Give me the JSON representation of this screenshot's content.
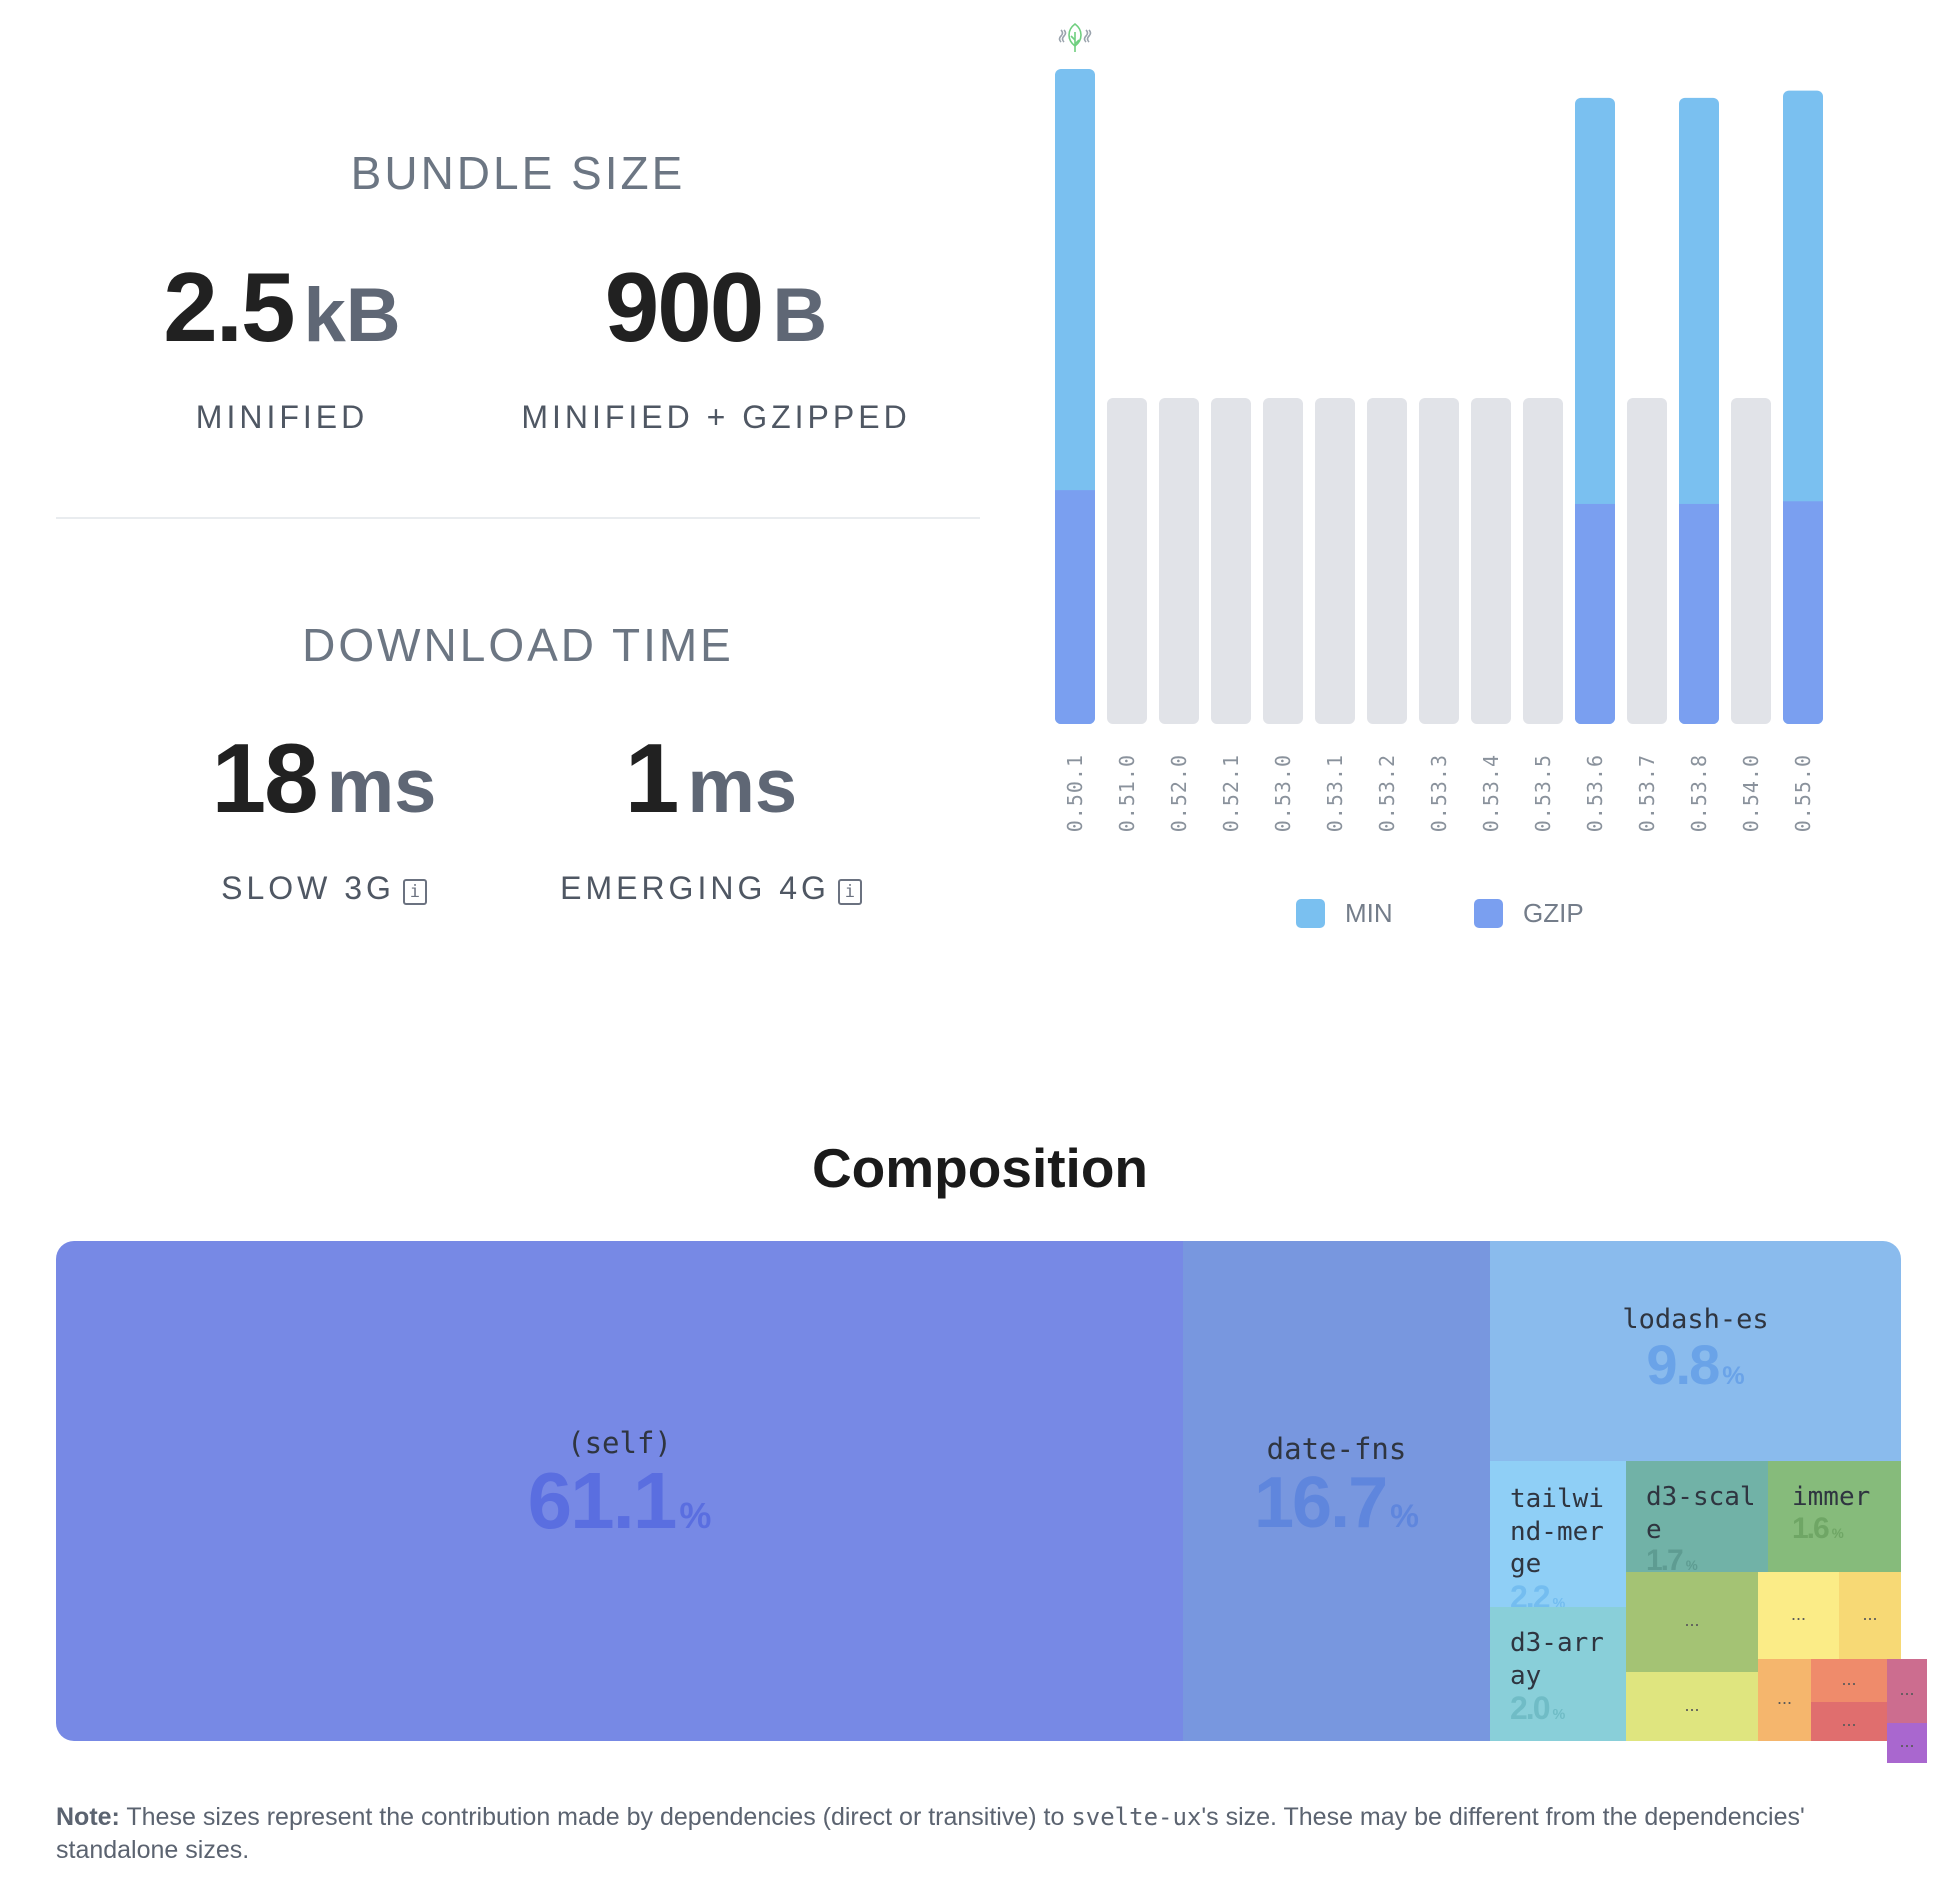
{
  "bundle_size": {
    "title": "BUNDLE SIZE",
    "minified": {
      "value": "2.5",
      "unit": "kB",
      "label": "MINIFIED"
    },
    "gzipped": {
      "value": "900",
      "unit": "B",
      "label": "MINIFIED + GZIPPED"
    }
  },
  "download_time": {
    "title": "DOWNLOAD TIME",
    "slow": {
      "value": "18",
      "unit": "ms",
      "label": "SLOW 3G"
    },
    "emerging": {
      "value": "1",
      "unit": "ms",
      "label": "EMERGING 4G"
    }
  },
  "info_icon_glyph": "i",
  "chart_data": {
    "type": "bar",
    "categories": [
      "0.50.1",
      "0.51.0",
      "0.52.0",
      "0.52.1",
      "0.53.0",
      "0.53.1",
      "0.53.2",
      "0.53.3",
      "0.53.4",
      "0.53.5",
      "0.53.6",
      "0.53.7",
      "0.53.8",
      "0.54.0",
      "0.55.0"
    ],
    "series": [
      {
        "name": "MIN",
        "values": [
          1,
          null,
          null,
          null,
          null,
          null,
          null,
          null,
          null,
          null,
          0.956,
          null,
          0.956,
          null,
          0.967
        ],
        "color": "#7ac0f0"
      },
      {
        "name": "GZIP",
        "values": [
          0.357,
          null,
          null,
          null,
          null,
          null,
          null,
          null,
          null,
          null,
          0.336,
          null,
          0.336,
          null,
          0.34
        ],
        "color": "#7a9ff0"
      }
    ],
    "empty_bar_color": "#e1e3e8",
    "highlight_icon": "tree-shake-icon",
    "legend": "bottom-center"
  },
  "composition": {
    "title": "Composition",
    "items": [
      {
        "name": "(self)",
        "pct": "61.1",
        "color": "#7789e5",
        "pct_color": "#5a6ee0"
      },
      {
        "name": "date-fns",
        "pct": "16.7",
        "color": "#7897df",
        "pct_color": "#5f86dd"
      },
      {
        "name": "lodash-es",
        "pct": "9.8",
        "color": "#8abbed",
        "pct_color": "#6aa3e8"
      },
      {
        "name": "tailwind-merge",
        "pct": "2.2",
        "color": "#8fcff6",
        "pct_color": "#74bdf0"
      },
      {
        "name": "d3-scale",
        "pct": "1.7",
        "color": "#71b2a7",
        "pct_color": "#5e9c92"
      },
      {
        "name": "immer",
        "pct": "1.6",
        "color": "#86bb7b",
        "pct_color": "#6fa665"
      },
      {
        "name": "d3-array",
        "pct": "2.0",
        "color": "#89cfd9",
        "pct_color": "#70bcc6"
      }
    ],
    "other_label": "..."
  },
  "note": {
    "bold": "Note:",
    "text_before": " These sizes represent the contribution made by dependencies (direct or transitive) to ",
    "package": "svelte-ux",
    "text_after": "'s size. These may be different from the dependencies' standalone sizes."
  }
}
